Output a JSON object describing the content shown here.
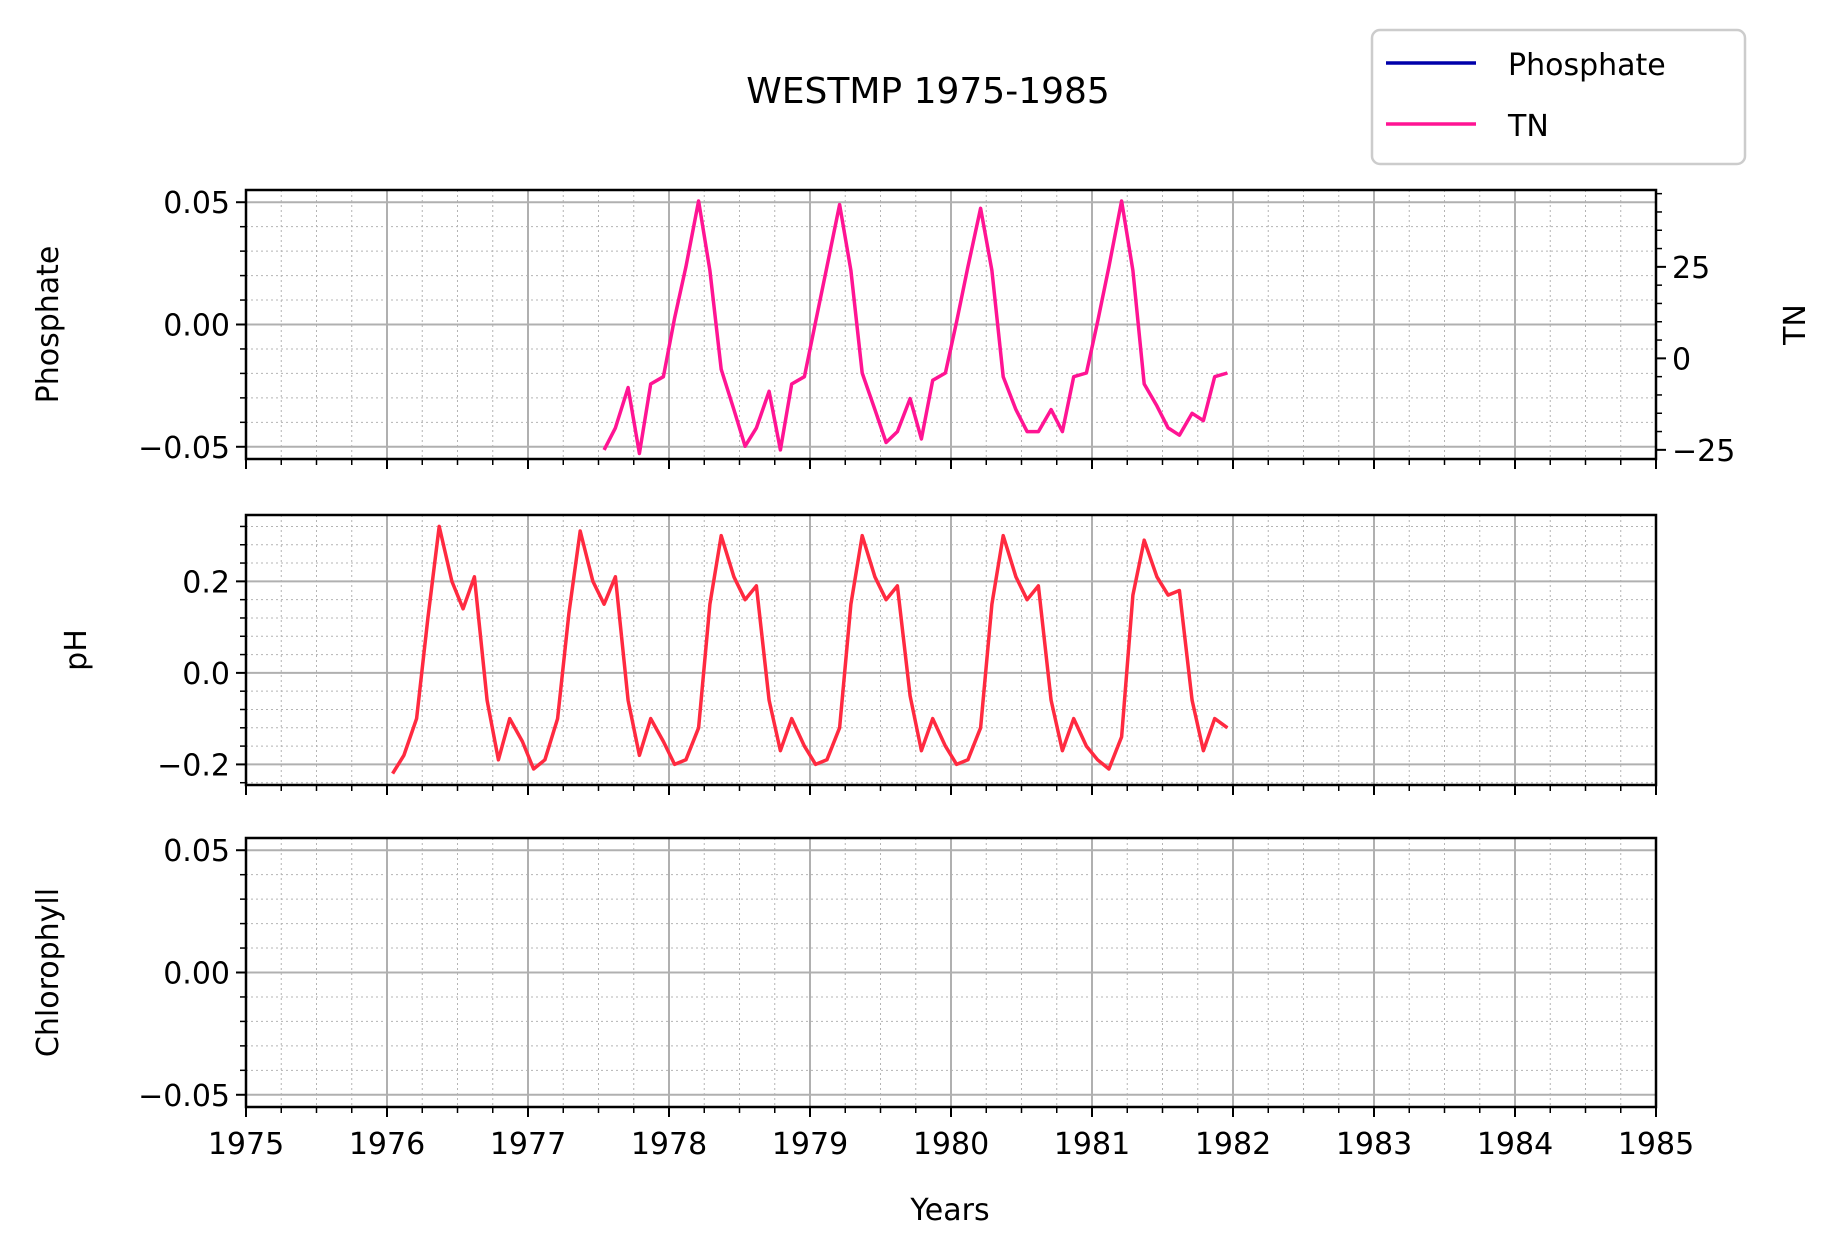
{
  "chart_data": {
    "type": "line",
    "title": "WESTMP 1975-1985",
    "xlabel": "Years",
    "xlim": [
      1975,
      1985
    ],
    "x_ticks": [
      "1975",
      "1976",
      "1977",
      "1978",
      "1979",
      "1980",
      "1981",
      "1982",
      "1983",
      "1984",
      "1985"
    ],
    "grid": true,
    "legend": {
      "placement": "top-right",
      "entries": [
        "Phosphate",
        "TN"
      ]
    },
    "colors": {
      "Phosphate": "#0000aa",
      "TN": "#ff1493",
      "pH": "#ff2a40"
    },
    "panels": [
      {
        "id": "p1",
        "ylabel": "Phosphate",
        "ylim": [
          -0.055,
          0.055
        ],
        "y_ticks": [
          {
            "v": 0.05,
            "t": "0.05"
          },
          {
            "v": 0.0,
            "t": "0.00"
          },
          {
            "v": -0.05,
            "t": "−0.05"
          }
        ],
        "y2label": "TN",
        "y2lim": [
          -27.5,
          46.0
        ],
        "y2_ticks": [
          {
            "v": 25,
            "t": "25"
          },
          {
            "v": 0,
            "t": "0"
          },
          {
            "v": -25,
            "t": "−25"
          }
        ],
        "series": [
          {
            "name": "Phosphate",
            "axis": "left",
            "x": [],
            "y": []
          },
          {
            "name": "TN",
            "axis": "right",
            "x": [
              1977.54,
              1977.62,
              1977.71,
              1977.79,
              1977.87,
              1977.96,
              1978.04,
              1978.12,
              1978.21,
              1978.29,
              1978.37,
              1978.46,
              1978.54,
              1978.62,
              1978.71,
              1978.79,
              1978.87,
              1978.96,
              1979.04,
              1979.12,
              1979.21,
              1979.29,
              1979.37,
              1979.46,
              1979.54,
              1979.62,
              1979.71,
              1979.79,
              1979.87,
              1979.96,
              1980.04,
              1980.12,
              1980.21,
              1980.29,
              1980.37,
              1980.46,
              1980.54,
              1980.62,
              1980.71,
              1980.79,
              1980.87,
              1980.96,
              1981.04,
              1981.12,
              1981.21,
              1981.29,
              1981.37,
              1981.46,
              1981.54,
              1981.62,
              1981.71,
              1981.79,
              1981.87,
              1981.96
            ],
            "y": [
              -25,
              -19,
              -8,
              -26,
              -7,
              -5,
              11,
              25,
              43,
              24,
              -3,
              -14,
              -24,
              -19,
              -9,
              -25,
              -7,
              -5,
              10,
              25,
              42,
              24,
              -4,
              -14,
              -23,
              -20,
              -11,
              -22,
              -6,
              -4,
              10,
              25,
              41,
              24,
              -5,
              -14,
              -20,
              -20,
              -14,
              -20,
              -5,
              -4,
              10,
              25,
              43,
              24,
              -7,
              -13,
              -19,
              -21,
              -15,
              -17,
              -5,
              -4
            ]
          }
        ]
      },
      {
        "id": "p2",
        "ylabel": "pH",
        "ylim": [
          -0.245,
          0.345
        ],
        "y_ticks": [
          {
            "v": 0.2,
            "t": "0.2"
          },
          {
            "v": 0.0,
            "t": "0.0"
          },
          {
            "v": -0.2,
            "t": "−0.2"
          }
        ],
        "series": [
          {
            "name": "pH",
            "axis": "left",
            "x": [
              1976.04,
              1976.12,
              1976.21,
              1976.29,
              1976.37,
              1976.46,
              1976.54,
              1976.62,
              1976.71,
              1976.79,
              1976.87,
              1976.96,
              1977.04,
              1977.12,
              1977.21,
              1977.29,
              1977.37,
              1977.46,
              1977.54,
              1977.62,
              1977.71,
              1977.79,
              1977.87,
              1977.96,
              1978.04,
              1978.12,
              1978.21,
              1978.29,
              1978.37,
              1978.46,
              1978.54,
              1978.62,
              1978.71,
              1978.79,
              1978.87,
              1978.96,
              1979.04,
              1979.12,
              1979.21,
              1979.29,
              1979.37,
              1979.46,
              1979.54,
              1979.62,
              1979.71,
              1979.79,
              1979.87,
              1979.96,
              1980.04,
              1980.12,
              1980.21,
              1980.29,
              1980.37,
              1980.46,
              1980.54,
              1980.62,
              1980.71,
              1980.79,
              1980.87,
              1980.96,
              1981.04,
              1981.12,
              1981.21,
              1981.29,
              1981.37,
              1981.46,
              1981.54,
              1981.62,
              1981.71,
              1981.79,
              1981.87,
              1981.96
            ],
            "y": [
              -0.22,
              -0.18,
              -0.1,
              0.12,
              0.32,
              0.2,
              0.14,
              0.21,
              -0.06,
              -0.19,
              -0.1,
              -0.15,
              -0.21,
              -0.19,
              -0.1,
              0.13,
              0.31,
              0.2,
              0.15,
              0.21,
              -0.06,
              -0.18,
              -0.1,
              -0.15,
              -0.2,
              -0.19,
              -0.12,
              0.15,
              0.3,
              0.21,
              0.16,
              0.19,
              -0.06,
              -0.17,
              -0.1,
              -0.16,
              -0.2,
              -0.19,
              -0.12,
              0.15,
              0.3,
              0.21,
              0.16,
              0.19,
              -0.05,
              -0.17,
              -0.1,
              -0.16,
              -0.2,
              -0.19,
              -0.12,
              0.15,
              0.3,
              0.21,
              0.16,
              0.19,
              -0.06,
              -0.17,
              -0.1,
              -0.16,
              -0.19,
              -0.21,
              -0.14,
              0.17,
              0.29,
              0.21,
              0.17,
              0.18,
              -0.06,
              -0.17,
              -0.1,
              -0.12
            ]
          }
        ]
      },
      {
        "id": "p3",
        "ylabel": "Chlorophyll",
        "ylim": [
          -0.055,
          0.055
        ],
        "y_ticks": [
          {
            "v": 0.05,
            "t": "0.05"
          },
          {
            "v": 0.0,
            "t": "0.00"
          },
          {
            "v": -0.05,
            "t": "−0.05"
          }
        ],
        "series": []
      }
    ]
  }
}
